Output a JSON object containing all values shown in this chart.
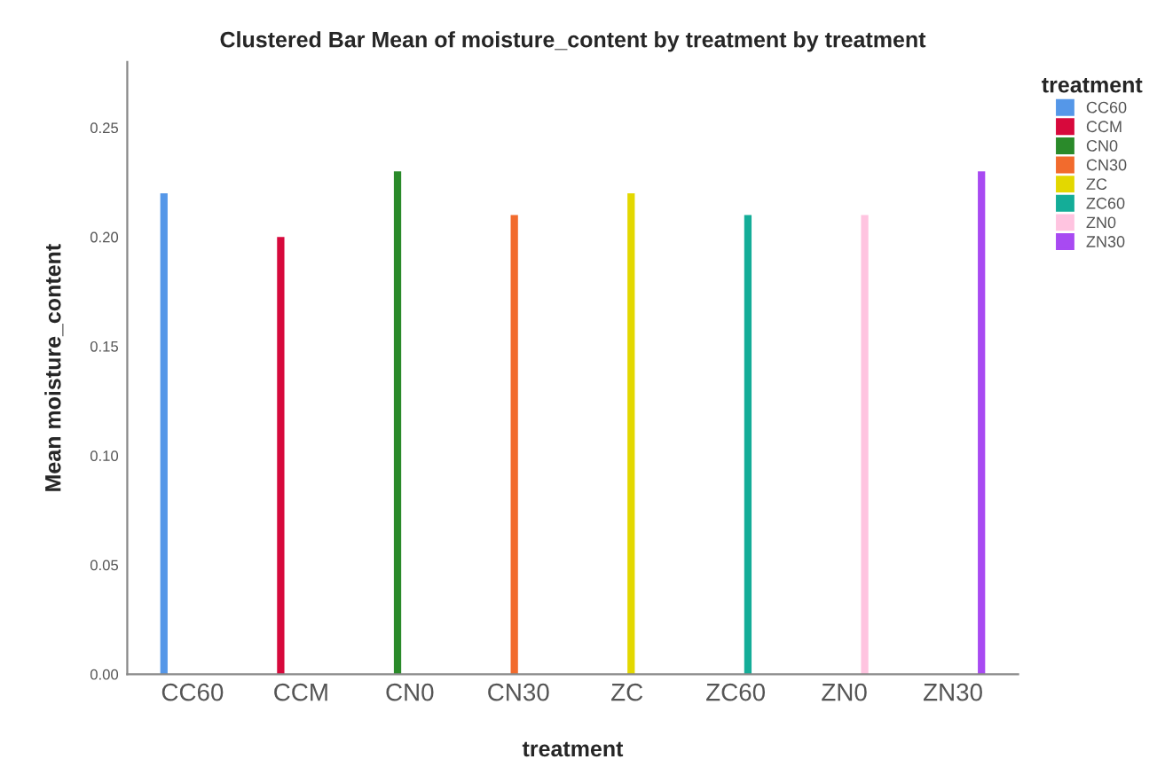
{
  "chart_data": {
    "type": "bar",
    "title": "Clustered Bar Mean of moisture_content by treatment by treatment",
    "xlabel": "treatment",
    "ylabel": "Mean moisture_content",
    "legend_title": "treatment",
    "categories": [
      "CC60",
      "CCM",
      "CN0",
      "CN30",
      "ZC",
      "ZC60",
      "ZN0",
      "ZN30"
    ],
    "series": [
      {
        "name": "CC60",
        "color": "#5597e8",
        "values": [
          0.22,
          null,
          null,
          null,
          null,
          null,
          null,
          null
        ]
      },
      {
        "name": "CCM",
        "color": "#d7093c",
        "values": [
          null,
          0.2,
          null,
          null,
          null,
          null,
          null,
          null
        ]
      },
      {
        "name": "CN0",
        "color": "#2a8a2a",
        "values": [
          null,
          null,
          0.23,
          null,
          null,
          null,
          null,
          null
        ]
      },
      {
        "name": "CN30",
        "color": "#f26b2d",
        "values": [
          null,
          null,
          null,
          0.21,
          null,
          null,
          null,
          null
        ]
      },
      {
        "name": "ZC",
        "color": "#e3d800",
        "values": [
          null,
          null,
          null,
          null,
          0.22,
          null,
          null,
          null
        ]
      },
      {
        "name": "ZC60",
        "color": "#14ad98",
        "values": [
          null,
          null,
          null,
          null,
          null,
          0.21,
          null,
          null
        ]
      },
      {
        "name": "ZN0",
        "color": "#ffc4e0",
        "values": [
          null,
          null,
          null,
          null,
          null,
          null,
          0.21,
          null
        ]
      },
      {
        "name": "ZN30",
        "color": "#a84af2",
        "values": [
          null,
          null,
          null,
          null,
          null,
          null,
          null,
          0.23
        ]
      }
    ],
    "ylim": [
      0,
      0.28
    ],
    "yticks": [
      {
        "value": 0,
        "label": "0.00"
      },
      {
        "value": 0.05,
        "label": "0.05"
      },
      {
        "value": 0.1,
        "label": "0.10"
      },
      {
        "value": 0.15,
        "label": "0.15"
      },
      {
        "value": 0.2,
        "label": "0.20"
      },
      {
        "value": 0.25,
        "label": "0.25"
      }
    ],
    "grid": false,
    "legend": "right"
  }
}
